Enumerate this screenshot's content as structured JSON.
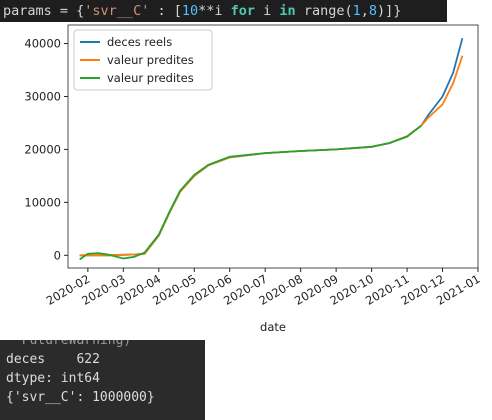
{
  "code": [
    "params",
    " = {",
    "'svr__C'",
    " : [",
    "10",
    "**i ",
    "for",
    " i ",
    "in",
    " ",
    "range",
    "(",
    "1",
    ",",
    "8",
    ")]}"
  ],
  "chart_data": {
    "type": "line",
    "xlabel": "date",
    "xlim": [
      0.44,
      12
    ],
    "ylim": [
      -2400,
      43500
    ],
    "xticks": [
      {
        "value": 1,
        "label": "2020-02"
      },
      {
        "value": 2,
        "label": "2020-03"
      },
      {
        "value": 3,
        "label": "2020-04"
      },
      {
        "value": 4,
        "label": "2020-05"
      },
      {
        "value": 5,
        "label": "2020-06"
      },
      {
        "value": 6,
        "label": "2020-07"
      },
      {
        "value": 7,
        "label": "2020-08"
      },
      {
        "value": 8,
        "label": "2020-09"
      },
      {
        "value": 9,
        "label": "2020-10"
      },
      {
        "value": 10,
        "label": "2020-11"
      },
      {
        "value": 11,
        "label": "2020-12"
      },
      {
        "value": 12,
        "label": "2021-01"
      }
    ],
    "yticks": [
      0,
      10000,
      20000,
      30000,
      40000
    ],
    "legend": "upper left",
    "x": [
      0.77,
      1.0,
      1.3,
      1.6,
      2.0,
      2.3,
      2.6,
      3.0,
      3.3,
      3.6,
      4.0,
      4.4,
      5.0,
      6.0,
      7.0,
      8.0,
      9.0,
      9.5,
      10.0,
      10.4,
      10.6,
      11.0,
      11.3,
      11.56
    ],
    "series": [
      {
        "name": "deces reels",
        "color": "#1f77b4",
        "values": [
          0,
          0,
          0,
          0,
          100,
          150,
          300,
          3700,
          8000,
          12000,
          15000,
          17000,
          18500,
          19300,
          19700,
          20000,
          20500,
          21200,
          22500,
          24500,
          26500,
          30000,
          34500,
          41000
        ]
      },
      {
        "name": "valeur predites",
        "color": "#ff7f0e",
        "values": [
          0,
          0,
          0,
          0,
          100,
          150,
          300,
          3700,
          8000,
          12000,
          15000,
          17000,
          18500,
          19300,
          19700,
          20000,
          20500,
          21200,
          22500,
          24500,
          26000,
          28500,
          32500,
          37700
        ]
      },
      {
        "name": "valeur predites",
        "color": "#2ca02c",
        "values": [
          -800,
          300,
          400,
          100,
          -600,
          -300,
          500,
          3900,
          8200,
          12200,
          15200,
          17100,
          18600,
          19300,
          19700,
          20000,
          20500,
          21200,
          22400,
          24500,
          null,
          null,
          null,
          null
        ]
      }
    ]
  },
  "output": [
    "  FutureWarning)",
    "deces    622",
    "dtype: int64",
    "{'svr__C': 1000000}"
  ]
}
